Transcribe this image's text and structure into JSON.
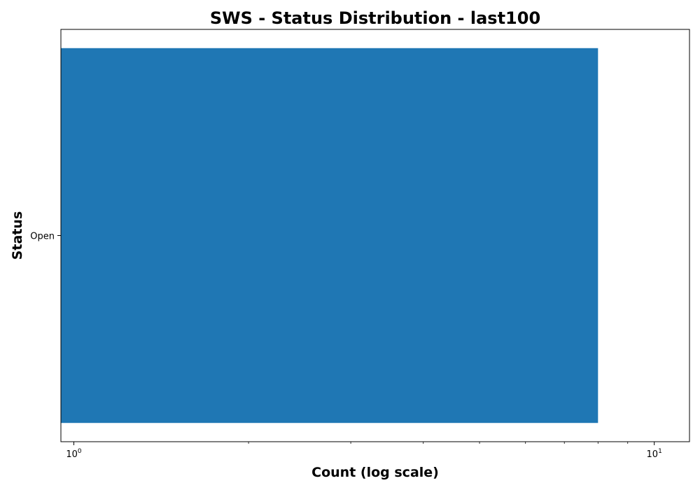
{
  "chart_data": {
    "type": "bar",
    "orientation": "horizontal",
    "title": "SWS - Status Distribution - last100",
    "xlabel": "Count (log scale)",
    "ylabel": "Status",
    "x_scale": "log",
    "xlim": [
      0.95,
      11.5
    ],
    "categories": [
      "Open"
    ],
    "values": [
      8
    ],
    "bar_color": "#1f77b4",
    "x_major_ticks": [
      {
        "value": 1,
        "base": "10",
        "exponent": "0"
      },
      {
        "value": 10,
        "base": "10",
        "exponent": "1"
      }
    ],
    "x_minor_ticks": [
      2,
      3,
      4,
      5,
      6,
      7,
      8,
      9
    ],
    "grid": false,
    "legend": "none"
  }
}
